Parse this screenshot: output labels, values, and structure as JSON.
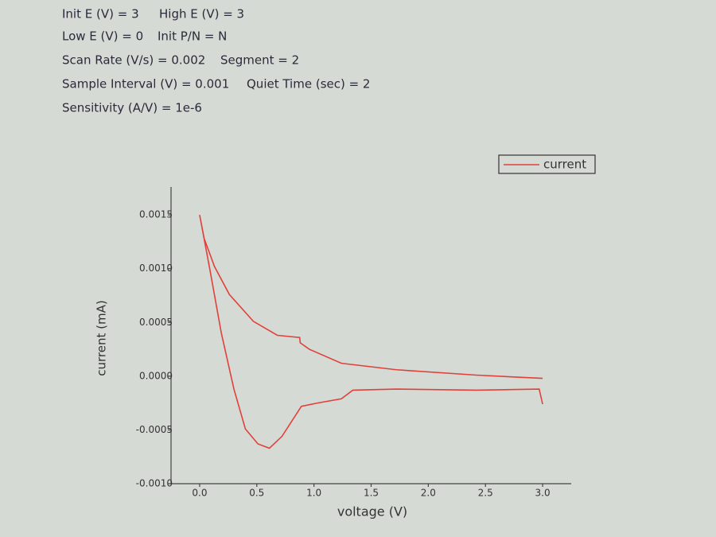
{
  "header": {
    "rows": [
      [
        "Init E (V) = 3",
        "High E (V) = 3"
      ],
      [
        "Low E (V) = 0",
        "Init P/N = N"
      ],
      [
        "Scan Rate (V/s) = 0.002",
        "Segment = 2"
      ],
      [
        "Sample Interval (V) = 0.001",
        "Quiet Time (sec) = 2"
      ],
      [
        "Sensitivity (A/V) = 1e-6"
      ]
    ]
  },
  "chart_data": {
    "type": "line",
    "x_label": "voltage (V)",
    "y_label": "current (mA)",
    "x": [
      3.0,
      2.42,
      1.72,
      1.24,
      0.96,
      0.88,
      0.875,
      0.68,
      0.47,
      0.26,
      0.13,
      0.04,
      0.0,
      0.09,
      0.19,
      0.3,
      0.4,
      0.51,
      0.61,
      0.72,
      0.89,
      1.03,
      1.24,
      1.34,
      1.72,
      2.42,
      2.97,
      3.0
    ],
    "series": [
      {
        "name": "current",
        "color": "#e0413a",
        "values": [
          -2e-05,
          1e-05,
          6e-05,
          0.00012,
          0.00025,
          0.00031,
          0.00036,
          0.00038,
          0.00051,
          0.00076,
          0.00102,
          0.00128,
          0.0015,
          0.00099,
          0.0004,
          -0.00012,
          -0.00049,
          -0.00063,
          -0.00067,
          -0.00056,
          -0.00028,
          -0.00025,
          -0.00021,
          -0.00013,
          -0.00012,
          -0.00013,
          -0.00012,
          -0.00026
        ]
      }
    ],
    "xlim": [
      -0.25,
      3.25
    ],
    "xticks": [
      {
        "value": 0,
        "label": "0.0"
      },
      {
        "value": 0.5,
        "label": "0.5"
      },
      {
        "value": 1,
        "label": "1.0"
      },
      {
        "value": 1.5,
        "label": "1.5"
      },
      {
        "value": 2,
        "label": "2.0"
      },
      {
        "value": 2.5,
        "label": "2.5"
      },
      {
        "value": 3,
        "label": "3.0"
      }
    ],
    "ylim": [
      -0.001,
      0.00176
    ],
    "yticks": [
      {
        "value": -0.001,
        "label": "-0.0010"
      },
      {
        "value": -0.0005,
        "label": "-0.0005"
      },
      {
        "value": 0,
        "label": "0.0000"
      },
      {
        "value": 0.0005,
        "label": "0.0005"
      },
      {
        "value": 0.001,
        "label": "0.0010"
      },
      {
        "value": 0.0015,
        "label": "0.0015"
      }
    ],
    "legend": "top-right",
    "grid": false
  }
}
